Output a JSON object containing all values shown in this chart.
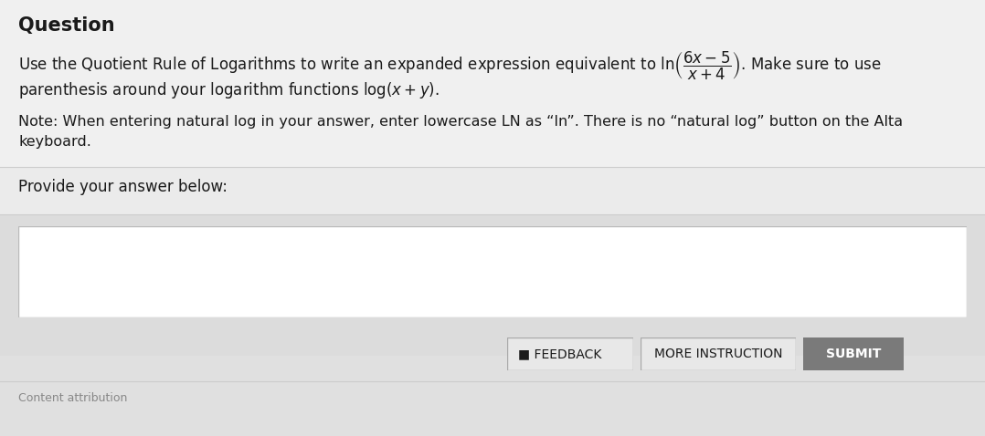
{
  "bg_top": "#f0f0f0",
  "bg_bottom": "#e2e2e2",
  "input_box_bg": "#ffffff",
  "title": "Question",
  "title_fontsize": 15,
  "line1_plain": "Use the Quotient Rule of Logarithms to write an expanded expression equivalent to ",
  "line1_math": "$\\ln\\!\\left(\\dfrac{6x-5}{x+4}\\right)$",
  "line1_end": ". Make sure to use",
  "line2_plain": "parenthesis around your logarithm functions ",
  "line2_math": "$\\log(x+y)$",
  "line2_end": ".",
  "note_line1": "Note: When entering natural log in your answer, enter lowercase LN as “ln”. There is no “natural log” button on the Alta",
  "note_line2": "keyboard.",
  "provide_text": "Provide your answer below:",
  "feedback_btn_text": "FEEDBACK",
  "more_btn_text": "MORE INSTRUCTION",
  "submit_btn_text": "SUBMIT",
  "divider_color": "#cccccc",
  "submit_btn_bg": "#7a7a7a",
  "submit_btn_text_color": "#ffffff",
  "text_color": "#1a1a1a",
  "body_fontsize": 12,
  "note_fontsize": 11.5,
  "provide_fontsize": 12,
  "btn_fontsize": 10,
  "content_attr_text": "Content attribution"
}
